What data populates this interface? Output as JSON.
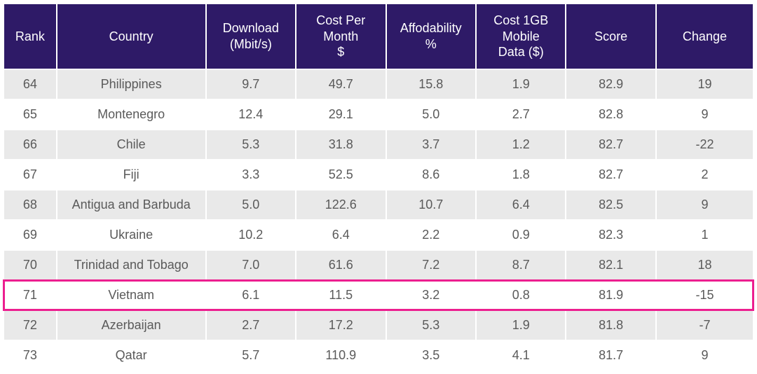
{
  "table": {
    "type": "table",
    "header_bg": "#2e1a67",
    "header_fg": "#ffffff",
    "row_odd_bg": "#e9e9e9",
    "row_even_bg": "#ffffff",
    "cell_fg": "#5a5a5a",
    "highlight_border": "#ec1e8f",
    "header_fontsize": 18,
    "cell_fontsize": 18,
    "highlighted_rank": 71,
    "columns": [
      {
        "key": "rank",
        "label": "Rank",
        "width_pct": 7
      },
      {
        "key": "country",
        "label": "Country",
        "width_pct": 20
      },
      {
        "key": "download",
        "label": "Download\n(Mbit/s)",
        "width_pct": 12
      },
      {
        "key": "costmo",
        "label": "Cost Per\nMonth\n$",
        "width_pct": 12
      },
      {
        "key": "afford",
        "label": "Affodability\n%",
        "width_pct": 12
      },
      {
        "key": "cost1gb",
        "label": "Cost 1GB\nMobile\nData ($)",
        "width_pct": 12
      },
      {
        "key": "score",
        "label": "Score",
        "width_pct": 12
      },
      {
        "key": "change",
        "label": "Change",
        "width_pct": 13
      }
    ],
    "rows": [
      {
        "rank": "64",
        "country": "Philippines",
        "download": "9.7",
        "costmo": "49.7",
        "afford": "15.8",
        "cost1gb": "1.9",
        "score": "82.9",
        "change": "19"
      },
      {
        "rank": "65",
        "country": "Montenegro",
        "download": "12.4",
        "costmo": "29.1",
        "afford": "5.0",
        "cost1gb": "2.7",
        "score": "82.8",
        "change": "9"
      },
      {
        "rank": "66",
        "country": "Chile",
        "download": "5.3",
        "costmo": "31.8",
        "afford": "3.7",
        "cost1gb": "1.2",
        "score": "82.7",
        "change": "-22"
      },
      {
        "rank": "67",
        "country": "Fiji",
        "download": "3.3",
        "costmo": "52.5",
        "afford": "8.6",
        "cost1gb": "1.8",
        "score": "82.7",
        "change": "2"
      },
      {
        "rank": "68",
        "country": "Antigua and Barbuda",
        "download": "5.0",
        "costmo": "122.6",
        "afford": "10.7",
        "cost1gb": "6.4",
        "score": "82.5",
        "change": "9"
      },
      {
        "rank": "69",
        "country": "Ukraine",
        "download": "10.2",
        "costmo": "6.4",
        "afford": "2.2",
        "cost1gb": "0.9",
        "score": "82.3",
        "change": "1"
      },
      {
        "rank": "70",
        "country": "Trinidad and Tobago",
        "download": "7.0",
        "costmo": "61.6",
        "afford": "7.2",
        "cost1gb": "8.7",
        "score": "82.1",
        "change": "18"
      },
      {
        "rank": "71",
        "country": "Vietnam",
        "download": "6.1",
        "costmo": "11.5",
        "afford": "3.2",
        "cost1gb": "0.8",
        "score": "81.9",
        "change": "-15"
      },
      {
        "rank": "72",
        "country": "Azerbaijan",
        "download": "2.7",
        "costmo": "17.2",
        "afford": "5.3",
        "cost1gb": "1.9",
        "score": "81.8",
        "change": "-7"
      },
      {
        "rank": "73",
        "country": "Qatar",
        "download": "5.7",
        "costmo": "110.9",
        "afford": "3.5",
        "cost1gb": "4.1",
        "score": "81.7",
        "change": "9"
      }
    ]
  }
}
